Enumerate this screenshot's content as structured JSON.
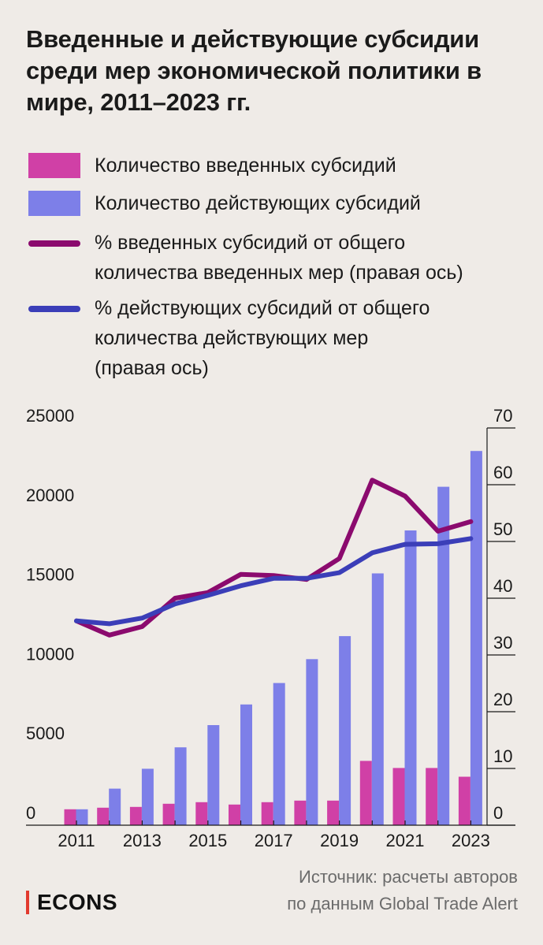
{
  "title": "Введенные и действующие субсидии среди мер экономической политики в мире, 2011–2023 гг.",
  "legend": [
    {
      "label": "Количество введенных субсидий",
      "kind": "bar",
      "color": "#d040a6"
    },
    {
      "label": "Количество действующих субсидий",
      "kind": "bar",
      "color": "#7d7fe8"
    },
    {
      "label": "% введенных субсидий от общего\nколичества введенных мер (правая ось)",
      "kind": "line",
      "color": "#8b0a6e"
    },
    {
      "label": "% действующих субсидий от общего\nколичества действующих мер\n(правая ось)",
      "kind": "line",
      "color": "#3b3eb8"
    }
  ],
  "chart_data": {
    "type": "bar",
    "x": [
      2011,
      2012,
      2013,
      2014,
      2015,
      2016,
      2017,
      2018,
      2019,
      2020,
      2021,
      2022,
      2023
    ],
    "x_tick_labels": [
      "2011",
      "2013",
      "2015",
      "2017",
      "2019",
      "2021",
      "2023"
    ],
    "left_axis": {
      "ylim": [
        0,
        25000
      ],
      "ticks": [
        "0",
        "5000",
        "10000",
        "15000",
        "20000",
        "25000"
      ]
    },
    "right_axis": {
      "ylim": [
        0,
        70
      ],
      "ticks": [
        "0",
        "10",
        "20",
        "30",
        "40",
        "50",
        "60",
        "70"
      ]
    },
    "grid": false,
    "series": [
      {
        "name": "Количество введенных субсидий",
        "type": "bar",
        "axis": "left",
        "color": "#d040a6",
        "values": [
          1000,
          1100,
          1150,
          1350,
          1450,
          1300,
          1450,
          1550,
          1550,
          4050,
          3600,
          3600,
          3050
        ]
      },
      {
        "name": "Количество действующих субсидий",
        "type": "bar",
        "axis": "left",
        "color": "#7d7fe8",
        "values": [
          1000,
          2300,
          3550,
          4900,
          6300,
          7600,
          8950,
          10450,
          11900,
          15850,
          18550,
          21300,
          23550
        ]
      },
      {
        "name": "% введенных субсидий от общего количества введенных мер (правая ось)",
        "type": "line",
        "axis": "right",
        "color": "#8b0a6e",
        "values": [
          36.0,
          33.5,
          35.0,
          40.0,
          41.0,
          44.2,
          44.0,
          43.3,
          47.0,
          60.8,
          58.0,
          51.8,
          53.5
        ]
      },
      {
        "name": "% действующих субсидий от общего количества действующих мер (правая ось)",
        "type": "line",
        "axis": "right",
        "color": "#3b3eb8",
        "values": [
          36.0,
          35.5,
          36.5,
          39.0,
          40.5,
          42.2,
          43.5,
          43.5,
          44.5,
          48.0,
          49.5,
          49.6,
          50.5
        ]
      }
    ]
  },
  "source": "Источник: расчеты авторов\nпо данным Global Trade Alert",
  "brand": "ECONS"
}
